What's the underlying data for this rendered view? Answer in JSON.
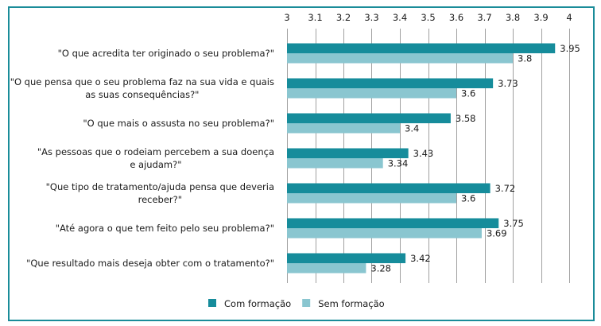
{
  "chart_data": {
    "type": "bar",
    "orientation": "horizontal",
    "title": "",
    "xlabel": "",
    "ylabel": "",
    "xlim": [
      3,
      4
    ],
    "ticks": [
      "3",
      "3.1",
      "3.2",
      "3.3",
      "3.4",
      "3.5",
      "3.6",
      "3.7",
      "3.8",
      "3.9",
      "4"
    ],
    "tick_values": [
      3,
      3.1,
      3.2,
      3.3,
      3.4,
      3.5,
      3.6,
      3.7,
      3.8,
      3.9,
      4
    ],
    "grid": "vertical",
    "categories": [
      [
        "\"O que acredita ter originado o seu problema?\""
      ],
      [
        "\"O que pensa que o seu problema faz na sua vida e quais",
        "as suas consequências?\""
      ],
      [
        "\"O que mais o assusta no seu problema?\""
      ],
      [
        "\"As pessoas que o rodeiam percebem a sua doença",
        "e ajudam?\""
      ],
      [
        "\"Que tipo de tratamento/ajuda pensa que deveria",
        "receber?\""
      ],
      [
        "\"Até agora o que tem feito pelo seu problema?\""
      ],
      [
        "\"Que resultado mais deseja obter com o tratamento?\""
      ]
    ],
    "series": [
      {
        "name": "Com formação",
        "color": "#168c9b",
        "values": [
          3.95,
          3.73,
          3.58,
          3.43,
          3.72,
          3.75,
          3.42
        ],
        "labels": [
          "3.95",
          "3.73",
          "3.58",
          "3.43",
          "3.72",
          "3.75",
          "3.42"
        ]
      },
      {
        "name": "Sem formação",
        "color": "#8ac6d0",
        "values": [
          3.8,
          3.6,
          3.4,
          3.34,
          3.6,
          3.69,
          3.28
        ],
        "labels": [
          "3.8",
          "3.6",
          "3.4",
          "3.34",
          "3.6",
          "3.69",
          "3.28"
        ]
      }
    ],
    "legend_position": "bottom-center",
    "frame_color": "#1a8c99",
    "grid_color": "#a0a0a0"
  }
}
